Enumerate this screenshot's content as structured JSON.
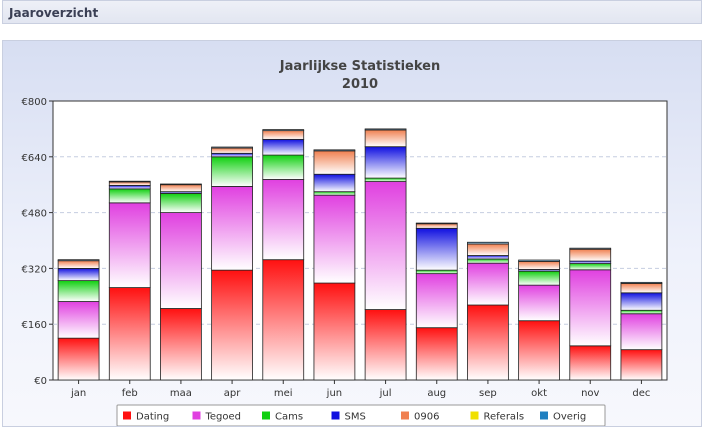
{
  "header": {
    "title": "Jaaroverzicht"
  },
  "colors": {
    "Dating": "#ff1010",
    "Tegoed": "#e040e0",
    "Cams": "#10d010",
    "SMS": "#1010e0",
    "0906": "#f08050",
    "Referals": "#f0e000",
    "Overig": "#2080c0"
  },
  "chart_data": {
    "type": "bar",
    "stacked": true,
    "title": "Jaarlijkse Statistieken",
    "subtitle": "2010",
    "categories": [
      "jan",
      "feb",
      "maa",
      "apr",
      "mei",
      "jun",
      "jul",
      "aug",
      "sep",
      "okt",
      "nov",
      "dec"
    ],
    "yticks": [
      "€0",
      "€160",
      "€320",
      "€480",
      "€640",
      "€800"
    ],
    "ylim": [
      0,
      800
    ],
    "grid": true,
    "legend_position": "bottom",
    "series": [
      {
        "name": "Dating",
        "values": [
          120,
          265,
          205,
          315,
          345,
          278,
          202,
          150,
          215,
          170,
          98,
          87
        ]
      },
      {
        "name": "Tegoed",
        "values": [
          105,
          243,
          275,
          240,
          230,
          252,
          367,
          155,
          120,
          102,
          218,
          103
        ]
      },
      {
        "name": "Cams",
        "values": [
          60,
          40,
          55,
          85,
          70,
          10,
          10,
          10,
          12,
          40,
          18,
          10
        ]
      },
      {
        "name": "SMS",
        "values": [
          35,
          10,
          5,
          10,
          45,
          50,
          90,
          120,
          10,
          5,
          7,
          50
        ]
      },
      {
        "name": "0906",
        "values": [
          22,
          10,
          20,
          15,
          25,
          67,
          48,
          13,
          33,
          23,
          34,
          27
        ]
      },
      {
        "name": "Referals",
        "values": [
          0,
          0,
          0,
          0,
          0,
          0,
          0,
          0,
          0,
          0,
          0,
          0
        ]
      },
      {
        "name": "Overig",
        "values": [
          3,
          2,
          2,
          3,
          3,
          3,
          3,
          2,
          5,
          4,
          3,
          3
        ]
      }
    ]
  }
}
